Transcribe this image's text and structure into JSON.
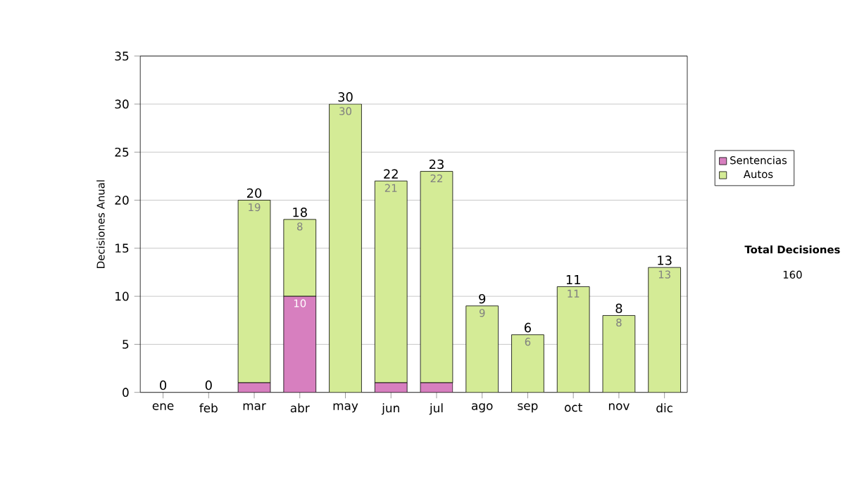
{
  "chart_data": {
    "type": "bar",
    "stacked": true,
    "ylabel": "Decisiones Anual",
    "categories": [
      "ene",
      "feb",
      "mar",
      "abr",
      "may",
      "jun",
      "jul",
      "ago",
      "sep",
      "oct",
      "nov",
      "dic"
    ],
    "series": [
      {
        "name": "Sentencias",
        "color": "#d77fbf",
        "values": [
          0,
          0,
          1,
          10,
          0,
          1,
          1,
          0,
          0,
          0,
          0,
          0
        ],
        "value_labels": [
          null,
          null,
          null,
          "10",
          null,
          null,
          null,
          null,
          null,
          null,
          null,
          null
        ]
      },
      {
        "name": "Autos",
        "color": "#d4eb96",
        "values": [
          0,
          0,
          19,
          8,
          30,
          21,
          22,
          9,
          6,
          11,
          8,
          13
        ],
        "value_labels": [
          null,
          null,
          "19",
          "8",
          "30",
          "21",
          "22",
          "9",
          "6",
          "11",
          "8",
          "13"
        ]
      }
    ],
    "totals": [
      "0",
      "0",
      "20",
      "18",
      "30",
      "22",
      "23",
      "9",
      "6",
      "11",
      "8",
      "13"
    ],
    "ylim": [
      0,
      35
    ],
    "yticks": [
      0,
      5,
      10,
      15,
      20,
      25,
      30,
      35
    ],
    "grid": "y",
    "legend": "right",
    "annotations": [
      "Total Decisiones",
      "160"
    ]
  }
}
